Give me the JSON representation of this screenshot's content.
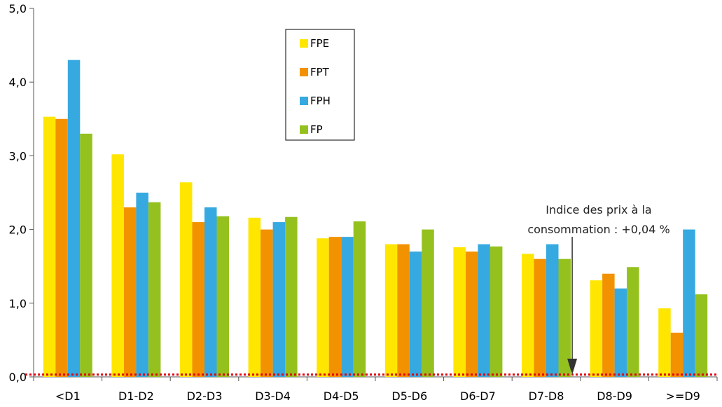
{
  "chart_data": {
    "type": "bar",
    "categories": [
      "<D1",
      "D1-D2",
      "D2-D3",
      "D3-D4",
      "D4-D5",
      "D5-D6",
      "D6-D7",
      "D7-D8",
      "D8-D9",
      ">=D9"
    ],
    "series": [
      {
        "name": "FPE",
        "color": "#ffe600",
        "values": [
          3.53,
          3.02,
          2.64,
          2.16,
          1.88,
          1.8,
          1.76,
          1.67,
          1.31,
          0.93
        ]
      },
      {
        "name": "FPT",
        "color": "#f39200",
        "values": [
          3.5,
          2.3,
          2.1,
          2.0,
          1.9,
          1.8,
          1.7,
          1.6,
          1.4,
          0.6
        ]
      },
      {
        "name": "FPH",
        "color": "#36a9e1",
        "values": [
          4.3,
          2.5,
          2.3,
          2.1,
          1.9,
          1.7,
          1.8,
          1.8,
          1.2,
          2.0
        ]
      },
      {
        "name": "FP",
        "color": "#95c11f",
        "values": [
          3.3,
          2.37,
          2.18,
          2.17,
          2.11,
          2.0,
          1.77,
          1.6,
          1.49,
          1.12
        ]
      }
    ],
    "y_ticks": [
      "0,0",
      "1,0",
      "2,0",
      "3,0",
      "4,0",
      "5,0"
    ],
    "ylim": [
      0,
      5
    ],
    "reference_line": {
      "value": 0.04,
      "color": "#e3000f",
      "style": "dotted"
    },
    "annotation": {
      "line1": "Indice des prix à la",
      "line2": "consommation : +0,04 %",
      "x_category": "D7-D8"
    },
    "legend": {
      "placement": "top-center"
    },
    "grid": false
  }
}
